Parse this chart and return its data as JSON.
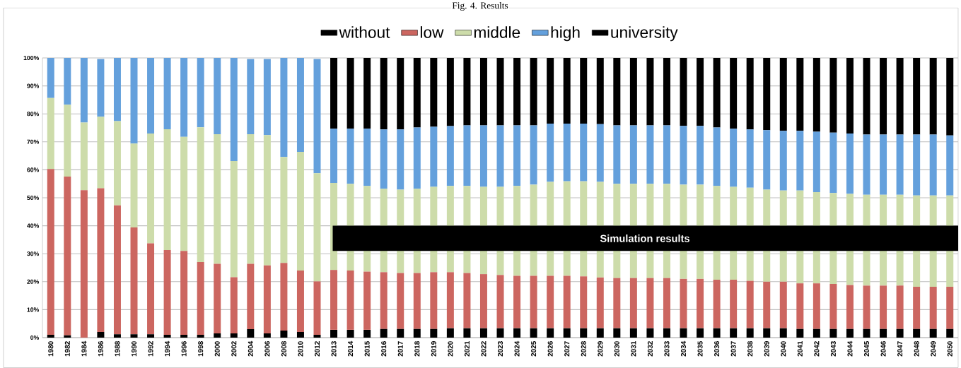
{
  "chart_data": {
    "type": "bar",
    "stacked": true,
    "title": "Fig. 4. Results",
    "categories": [
      "1980",
      "1982",
      "1984",
      "1986",
      "1988",
      "1990",
      "1992",
      "1994",
      "1996",
      "1998",
      "2000",
      "2002",
      "2004",
      "2006",
      "2008",
      "2010",
      "2012",
      "2013",
      "2014",
      "2015",
      "2016",
      "2017",
      "2018",
      "2019",
      "2020",
      "2021",
      "2022",
      "2023",
      "2024",
      "2025",
      "2026",
      "2027",
      "2028",
      "2029",
      "2030",
      "2031",
      "2032",
      "2033",
      "2034",
      "2035",
      "2036",
      "2037",
      "2038",
      "2039",
      "2040",
      "2041",
      "2042",
      "2043",
      "2044",
      "2045",
      "2046",
      "2047",
      "2048",
      "2049",
      "2050"
    ],
    "series": [
      {
        "name": "without",
        "color": "#000000",
        "values": [
          1.0,
          0.8,
          0,
          2.0,
          1.2,
          1.2,
          1.2,
          1.0,
          1.0,
          1.0,
          1.5,
          1.5,
          3.0,
          1.5,
          2.5,
          2.0,
          1.0,
          2.8,
          2.8,
          2.8,
          3.1,
          3.1,
          3.1,
          3.1,
          3.4,
          3.4,
          3.4,
          3.4,
          3.4,
          3.4,
          3.4,
          3.4,
          3.4,
          3.4,
          3.4,
          3.4,
          3.4,
          3.4,
          3.4,
          3.4,
          3.4,
          3.4,
          3.4,
          3.4,
          3.4,
          3.1,
          3.1,
          3.1,
          3.1,
          3.1,
          3.1,
          3.1,
          3.1,
          3.1,
          3.1
        ]
      },
      {
        "name": "low",
        "color": "#cc6660",
        "values": [
          59.3,
          56.8,
          52.7,
          51.4,
          46.1,
          38.2,
          32.5,
          30.3,
          30.0,
          26.0,
          24.9,
          20.1,
          23.4,
          24.3,
          24.2,
          22.0,
          19.1,
          21.4,
          21.2,
          20.8,
          20.3,
          20.0,
          20.0,
          20.3,
          20.0,
          19.7,
          19.3,
          19.0,
          18.7,
          18.7,
          18.7,
          18.7,
          18.5,
          18.1,
          17.9,
          17.9,
          17.9,
          17.9,
          17.6,
          17.6,
          17.3,
          17.3,
          16.9,
          16.6,
          16.6,
          16.3,
          16.3,
          16.1,
          15.7,
          15.5,
          15.5,
          15.5,
          15.1,
          15.1,
          15.1
        ]
      },
      {
        "name": "middle",
        "color": "#cddcaa",
        "values": [
          25.4,
          25.7,
          24.2,
          25.6,
          30.1,
          30.0,
          39.3,
          43.2,
          40.8,
          48.2,
          46.3,
          41.5,
          46.3,
          46.6,
          37.9,
          42.4,
          38.7,
          31.1,
          31.0,
          30.6,
          29.8,
          29.8,
          30.1,
          30.5,
          30.8,
          31.1,
          31.2,
          31.5,
          32.1,
          32.6,
          33.6,
          33.8,
          34.0,
          34.2,
          33.7,
          33.7,
          33.7,
          33.7,
          33.7,
          33.7,
          33.5,
          33.2,
          33.3,
          32.9,
          32.6,
          33.2,
          32.6,
          32.5,
          32.6,
          32.5,
          32.5,
          32.5,
          32.6,
          32.6,
          32.6
        ]
      },
      {
        "name": "high",
        "color": "#64a0dc",
        "values": [
          14.3,
          16.7,
          23.1,
          20.6,
          22.6,
          30.6,
          27.0,
          25.5,
          28.2,
          24.8,
          27.3,
          36.9,
          26.9,
          27.2,
          35.4,
          33.6,
          40.8,
          19.4,
          19.7,
          20.5,
          21.2,
          21.5,
          21.9,
          21.5,
          21.4,
          21.7,
          22.0,
          22.0,
          21.7,
          21.2,
          20.8,
          20.6,
          20.6,
          20.6,
          20.9,
          20.9,
          20.9,
          20.9,
          21.0,
          21.0,
          20.9,
          20.8,
          20.8,
          21.3,
          21.3,
          21.3,
          21.6,
          21.6,
          21.6,
          21.5,
          21.5,
          21.5,
          21.8,
          21.8,
          21.5
        ]
      },
      {
        "name": "university",
        "color": "#000000",
        "values": [
          null,
          null,
          null,
          null,
          null,
          null,
          null,
          null,
          null,
          null,
          null,
          null,
          null,
          null,
          null,
          null,
          null,
          25.3,
          25.3,
          25.3,
          25.6,
          25.6,
          24.9,
          24.6,
          24.4,
          24.1,
          24.1,
          24.1,
          24.1,
          24.1,
          23.5,
          23.5,
          23.5,
          23.7,
          24.1,
          24.1,
          24.1,
          24.1,
          24.3,
          24.3,
          24.9,
          25.3,
          25.6,
          25.8,
          26.1,
          26.1,
          26.4,
          26.7,
          27.0,
          27.4,
          27.4,
          27.4,
          27.4,
          27.4,
          27.7
        ]
      }
    ],
    "ylim": [
      0,
      100
    ],
    "yticks": [
      {
        "value": 0,
        "label": "0%"
      },
      {
        "value": 10,
        "label": "10%"
      },
      {
        "value": 20,
        "label": "20%"
      },
      {
        "value": 30,
        "label": "30%"
      },
      {
        "value": 40,
        "label": "40%"
      },
      {
        "value": 50,
        "label": "50%"
      },
      {
        "value": 60,
        "label": "60%"
      },
      {
        "value": 70,
        "label": "70%"
      },
      {
        "value": 80,
        "label": "80%"
      },
      {
        "value": 90,
        "label": "90%"
      },
      {
        "value": 100,
        "label": "100%"
      }
    ],
    "grid": "y",
    "legend": "top",
    "annotations": [
      "Simulation results"
    ]
  }
}
